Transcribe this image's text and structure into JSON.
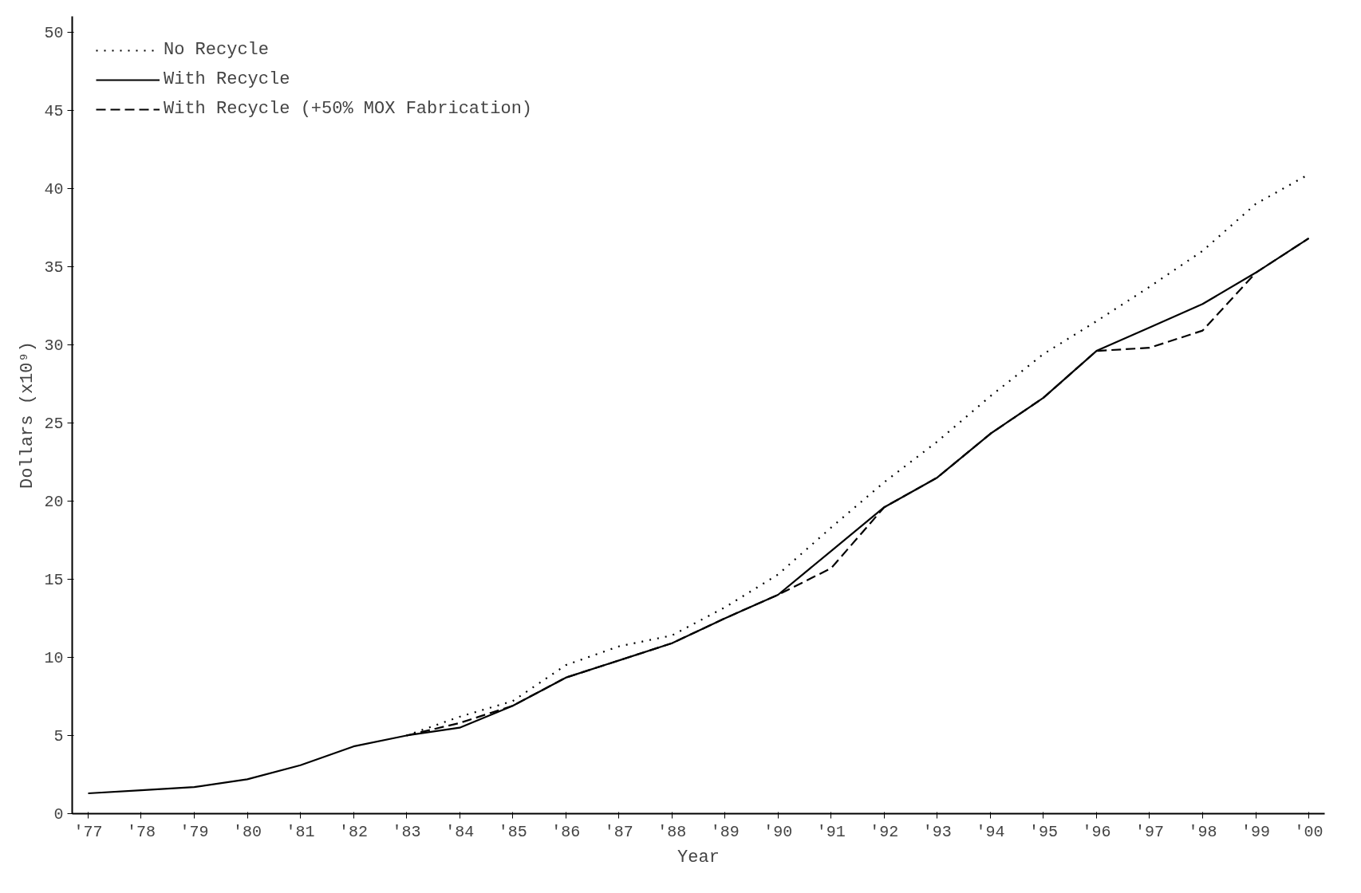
{
  "chart_data": {
    "type": "line",
    "xlabel": "Year",
    "ylabel": "Dollars (x10⁹)",
    "categories": [
      "'77",
      "'78",
      "'79",
      "'80",
      "'81",
      "'82",
      "'83",
      "'84",
      "'85",
      "'86",
      "'87",
      "'88",
      "'89",
      "'90",
      "'91",
      "'92",
      "'93",
      "'94",
      "'95",
      "'96",
      "'97",
      "'98",
      "'99",
      "'00"
    ],
    "series": [
      {
        "name": "No Recycle",
        "color": "#000000",
        "line_style": "dotted",
        "values": [
          null,
          null,
          null,
          null,
          null,
          null,
          5.0,
          6.2,
          7.2,
          9.5,
          10.7,
          11.4,
          13.2,
          15.3,
          18.3,
          21.2,
          23.8,
          26.7,
          29.4,
          31.5,
          33.7,
          36.0,
          39.0,
          40.9
        ]
      },
      {
        "name": "With Recycle",
        "color": "#000000",
        "line_style": "solid",
        "values": [
          1.3,
          1.5,
          1.7,
          2.2,
          3.1,
          4.3,
          5.0,
          5.5,
          6.9,
          8.7,
          9.8,
          10.9,
          12.5,
          14.0,
          16.8,
          19.6,
          21.5,
          24.3,
          26.6,
          29.6,
          31.1,
          32.6,
          34.6,
          36.8
        ]
      },
      {
        "name": "With Recycle (+50% MOX Fabrication)",
        "color": "#000000",
        "line_style": "dashed",
        "values": [
          null,
          null,
          null,
          null,
          null,
          null,
          5.0,
          5.8,
          6.9,
          8.7,
          9.8,
          10.9,
          12.5,
          14.0,
          15.7,
          19.6,
          21.5,
          24.3,
          26.6,
          29.6,
          29.8,
          30.9,
          34.6,
          36.8
        ]
      }
    ],
    "ylim": [
      0,
      51
    ],
    "yticks": [
      0,
      5,
      10,
      15,
      20,
      25,
      30,
      35,
      40,
      45,
      50
    ],
    "grid": false,
    "legend": "top left",
    "marker": "none"
  }
}
